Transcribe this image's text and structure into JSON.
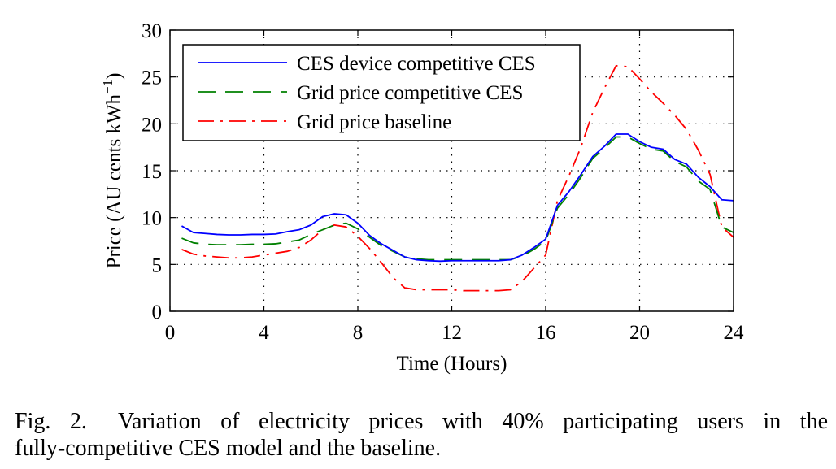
{
  "figure": {
    "caption_label": "Fig. 2.",
    "caption_line1": "Variation of electricity prices with 40% participating users in the",
    "caption_line2": "fully-competitive CES model and the baseline."
  },
  "chart_data": {
    "type": "line",
    "title": "",
    "xlabel": "Time (Hours)",
    "ylabel_main": "Price (AU cents kWh",
    "ylabel_sup": "−1",
    "ylabel_close": ")",
    "xlim": [
      0,
      24
    ],
    "ylim": [
      0,
      30
    ],
    "xticks": [
      0,
      4,
      8,
      12,
      16,
      20,
      24
    ],
    "yticks": [
      0,
      5,
      10,
      15,
      20,
      25,
      30
    ],
    "grid": true,
    "legend_position": "top-left",
    "series": [
      {
        "name": "CES device competitive CES",
        "color": "#0000ff",
        "style": "solid",
        "x": [
          0.5,
          1,
          1.5,
          2,
          2.5,
          3,
          3.5,
          4,
          4.5,
          5,
          5.5,
          6,
          6.5,
          7,
          7.5,
          8,
          8.5,
          9,
          9.5,
          10,
          10.5,
          11,
          11.5,
          12,
          12.5,
          13,
          13.5,
          14,
          14.5,
          15,
          15.5,
          16,
          16.5,
          17,
          17.5,
          18,
          18.5,
          19,
          19.5,
          20,
          20.5,
          21,
          21.5,
          22,
          22.5,
          23,
          23.5,
          24
        ],
        "y": [
          9.1,
          8.4,
          8.3,
          8.2,
          8.15,
          8.15,
          8.2,
          8.2,
          8.25,
          8.5,
          8.7,
          9.2,
          10.1,
          10.4,
          10.3,
          9.4,
          8.1,
          7.2,
          6.5,
          5.8,
          5.5,
          5.4,
          5.35,
          5.4,
          5.4,
          5.4,
          5.4,
          5.4,
          5.5,
          6.0,
          6.8,
          7.7,
          11.3,
          12.8,
          14.6,
          16.5,
          17.6,
          18.9,
          18.9,
          18.1,
          17.5,
          17.3,
          16.2,
          15.7,
          14.3,
          13.3,
          11.9,
          11.8
        ]
      },
      {
        "name": "Grid price competitive CES",
        "color": "#008000",
        "style": "dashed",
        "x": [
          0.5,
          1,
          1.5,
          2,
          2.5,
          3,
          3.5,
          4,
          4.5,
          5,
          5.5,
          6,
          6.5,
          7,
          7.5,
          8,
          8.5,
          9,
          9.5,
          10,
          10.5,
          11,
          11.5,
          12,
          12.5,
          13,
          13.5,
          14,
          14.5,
          15,
          15.5,
          16,
          16.5,
          17,
          17.5,
          18,
          18.5,
          19,
          19.5,
          20,
          20.5,
          21,
          21.5,
          22,
          22.5,
          23,
          23.5,
          24
        ],
        "y": [
          7.8,
          7.3,
          7.15,
          7.1,
          7.1,
          7.1,
          7.15,
          7.15,
          7.2,
          7.4,
          7.6,
          8.2,
          8.7,
          9.2,
          9.4,
          8.8,
          7.9,
          7.0,
          6.4,
          5.8,
          5.6,
          5.5,
          5.5,
          5.5,
          5.5,
          5.5,
          5.5,
          5.5,
          5.5,
          5.9,
          6.6,
          7.5,
          11.0,
          12.5,
          14.3,
          16.3,
          17.4,
          18.6,
          18.6,
          17.9,
          17.3,
          17.1,
          16.0,
          15.4,
          13.9,
          13.0,
          9.0,
          8.4
        ]
      },
      {
        "name": "Grid price baseline",
        "color": "#ff0000",
        "style": "dashdot",
        "x": [
          0.5,
          1,
          1.5,
          2,
          2.5,
          3,
          3.5,
          4,
          4.5,
          5,
          5.5,
          6,
          6.5,
          7,
          7.5,
          8,
          8.5,
          9,
          9.5,
          10,
          10.5,
          11,
          11.5,
          12,
          12.5,
          13,
          13.5,
          14,
          14.5,
          15,
          15.5,
          16,
          16.5,
          17,
          17.5,
          18,
          18.5,
          19,
          19.5,
          20,
          20.5,
          21,
          21.5,
          22,
          22.5,
          23,
          23.5,
          24
        ],
        "y": [
          6.6,
          6.1,
          5.9,
          5.8,
          5.7,
          5.7,
          5.8,
          6.0,
          6.2,
          6.4,
          6.8,
          7.6,
          8.7,
          9.2,
          9.0,
          8.0,
          6.7,
          5.2,
          3.6,
          2.5,
          2.3,
          2.3,
          2.3,
          2.3,
          2.2,
          2.2,
          2.2,
          2.2,
          2.3,
          3.2,
          4.6,
          6.0,
          11.8,
          14.5,
          17.5,
          21.2,
          23.8,
          26.2,
          26.1,
          24.8,
          23.4,
          22.2,
          20.9,
          19.4,
          17.2,
          14.6,
          9.0,
          7.9
        ]
      }
    ]
  }
}
